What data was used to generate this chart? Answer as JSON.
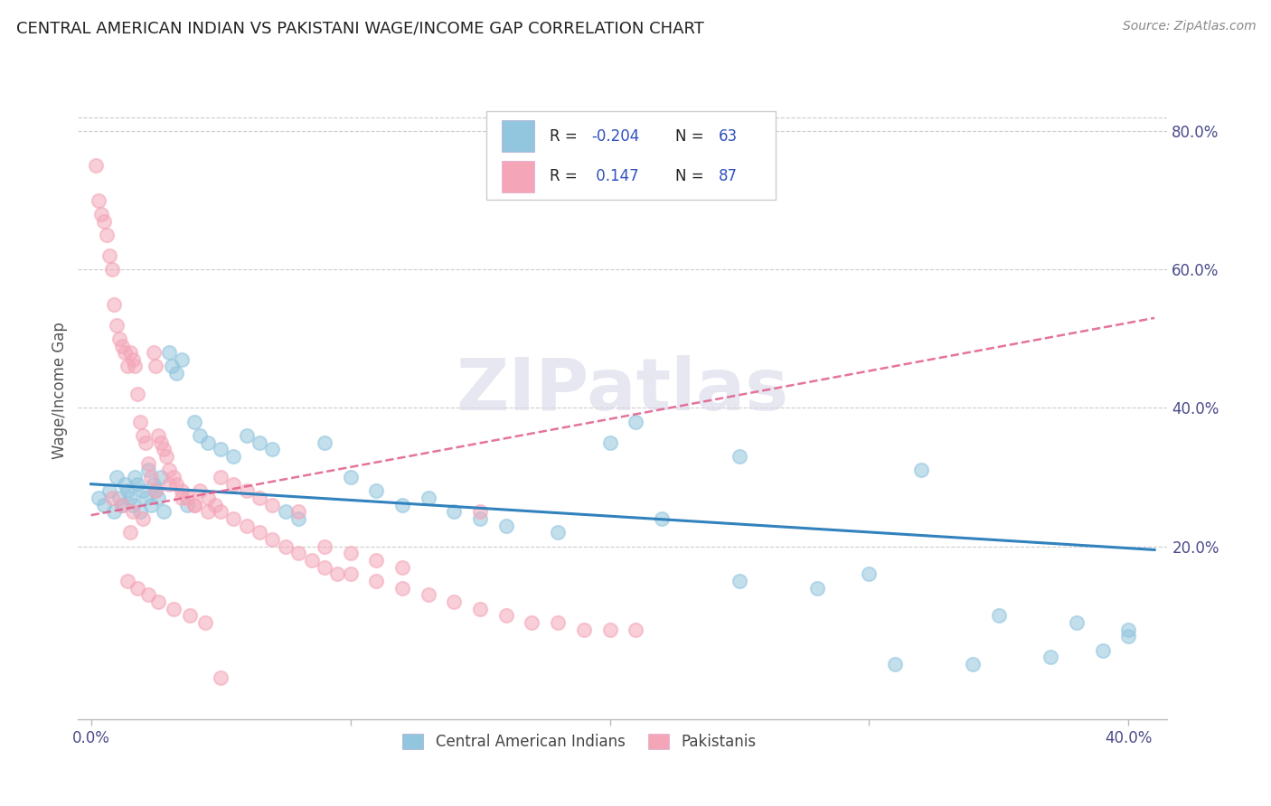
{
  "title": "CENTRAL AMERICAN INDIAN VS PAKISTANI WAGE/INCOME GAP CORRELATION CHART",
  "source": "Source: ZipAtlas.com",
  "ylabel": "Wage/Income Gap",
  "xlim": [
    -0.005,
    0.415
  ],
  "ylim": [
    -0.05,
    0.9
  ],
  "xtick_positions": [
    0.0,
    0.1,
    0.2,
    0.3,
    0.4
  ],
  "xtick_labels": [
    "0.0%",
    "",
    "",
    "",
    "40.0%"
  ],
  "ytick_positions_right": [
    0.2,
    0.4,
    0.6,
    0.8
  ],
  "ytick_labels_right": [
    "20.0%",
    "40.0%",
    "60.0%",
    "80.0%"
  ],
  "blue_color": "#92c5de",
  "pink_color": "#f4a6b8",
  "blue_line_color": "#3182bd",
  "pink_line_color": "#e05c8a",
  "watermark": "ZIPatlas",
  "blue_trend_x": [
    0.0,
    0.41
  ],
  "blue_trend_y": [
    0.29,
    0.195
  ],
  "pink_trend_x": [
    0.0,
    0.41
  ],
  "pink_trend_y": [
    0.245,
    0.53
  ],
  "blue_scatter_x": [
    0.003,
    0.005,
    0.007,
    0.009,
    0.01,
    0.011,
    0.012,
    0.013,
    0.014,
    0.015,
    0.016,
    0.017,
    0.018,
    0.019,
    0.02,
    0.021,
    0.022,
    0.023,
    0.024,
    0.025,
    0.026,
    0.027,
    0.028,
    0.03,
    0.031,
    0.033,
    0.035,
    0.037,
    0.04,
    0.042,
    0.045,
    0.05,
    0.055,
    0.06,
    0.065,
    0.07,
    0.075,
    0.08,
    0.09,
    0.1,
    0.11,
    0.12,
    0.13,
    0.14,
    0.15,
    0.16,
    0.18,
    0.2,
    0.22,
    0.25,
    0.28,
    0.3,
    0.32,
    0.35,
    0.38,
    0.4,
    0.4,
    0.39,
    0.37,
    0.34,
    0.31,
    0.25,
    0.21
  ],
  "blue_scatter_y": [
    0.27,
    0.26,
    0.28,
    0.25,
    0.3,
    0.27,
    0.26,
    0.29,
    0.28,
    0.27,
    0.26,
    0.3,
    0.29,
    0.25,
    0.28,
    0.27,
    0.31,
    0.26,
    0.29,
    0.28,
    0.27,
    0.3,
    0.25,
    0.48,
    0.46,
    0.45,
    0.47,
    0.26,
    0.38,
    0.36,
    0.35,
    0.34,
    0.33,
    0.36,
    0.35,
    0.34,
    0.25,
    0.24,
    0.35,
    0.3,
    0.28,
    0.26,
    0.27,
    0.25,
    0.24,
    0.23,
    0.22,
    0.35,
    0.24,
    0.15,
    0.14,
    0.16,
    0.31,
    0.1,
    0.09,
    0.08,
    0.07,
    0.05,
    0.04,
    0.03,
    0.03,
    0.33,
    0.38
  ],
  "pink_scatter_x": [
    0.002,
    0.003,
    0.004,
    0.005,
    0.006,
    0.007,
    0.008,
    0.009,
    0.01,
    0.011,
    0.012,
    0.013,
    0.014,
    0.015,
    0.016,
    0.017,
    0.018,
    0.019,
    0.02,
    0.021,
    0.022,
    0.023,
    0.024,
    0.025,
    0.026,
    0.027,
    0.028,
    0.029,
    0.03,
    0.032,
    0.033,
    0.035,
    0.037,
    0.04,
    0.042,
    0.045,
    0.048,
    0.05,
    0.055,
    0.06,
    0.065,
    0.07,
    0.075,
    0.08,
    0.085,
    0.09,
    0.095,
    0.1,
    0.11,
    0.12,
    0.13,
    0.14,
    0.15,
    0.16,
    0.17,
    0.18,
    0.19,
    0.2,
    0.21,
    0.15,
    0.008,
    0.012,
    0.016,
    0.02,
    0.015,
    0.025,
    0.03,
    0.035,
    0.04,
    0.045,
    0.05,
    0.055,
    0.06,
    0.065,
    0.07,
    0.08,
    0.09,
    0.1,
    0.11,
    0.12,
    0.014,
    0.018,
    0.022,
    0.026,
    0.032,
    0.038,
    0.044,
    0.05
  ],
  "pink_scatter_y": [
    0.75,
    0.7,
    0.68,
    0.67,
    0.65,
    0.62,
    0.6,
    0.55,
    0.52,
    0.5,
    0.49,
    0.48,
    0.46,
    0.48,
    0.47,
    0.46,
    0.42,
    0.38,
    0.36,
    0.35,
    0.32,
    0.3,
    0.48,
    0.46,
    0.36,
    0.35,
    0.34,
    0.33,
    0.31,
    0.3,
    0.29,
    0.28,
    0.27,
    0.26,
    0.28,
    0.27,
    0.26,
    0.25,
    0.24,
    0.23,
    0.22,
    0.21,
    0.2,
    0.19,
    0.18,
    0.17,
    0.16,
    0.16,
    0.15,
    0.14,
    0.13,
    0.12,
    0.11,
    0.1,
    0.09,
    0.09,
    0.08,
    0.08,
    0.08,
    0.25,
    0.27,
    0.26,
    0.25,
    0.24,
    0.22,
    0.28,
    0.29,
    0.27,
    0.26,
    0.25,
    0.3,
    0.29,
    0.28,
    0.27,
    0.26,
    0.25,
    0.2,
    0.19,
    0.18,
    0.17,
    0.15,
    0.14,
    0.13,
    0.12,
    0.11,
    0.1,
    0.09,
    0.01
  ]
}
